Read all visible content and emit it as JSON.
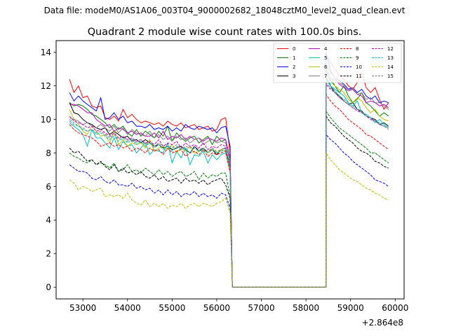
{
  "figure": {
    "header_text": "Data file: modeM0/AS1A06_003T04_9000002682_18048cztM0_level2_quad_clean.evt",
    "offset_label": "+2.864e8"
  },
  "chart_data": {
    "type": "line",
    "title": "Quadrant 2 module wise count rates with 100.0s bins.",
    "xlabel": "",
    "ylabel": "",
    "x_offset": 286400000,
    "xlim": [
      52400,
      60200
    ],
    "ylim": [
      -0.7,
      14.7
    ],
    "xticks": [
      53000,
      54000,
      55000,
      56000,
      57000,
      58000,
      59000,
      60000
    ],
    "yticks": [
      0,
      2,
      4,
      6,
      8,
      10,
      12,
      14
    ],
    "legend_location": "upper right",
    "legend_columns": 4,
    "seg1": {
      "start": 52700,
      "step": 100,
      "count": 37
    },
    "seg2": {
      "start": 58450,
      "step": 100,
      "count": 15
    },
    "zero_range": [
      56350,
      58450
    ],
    "series": [
      {
        "name": "0",
        "color": "#ff0000",
        "dashed": false,
        "values1": [
          12.4,
          11.6,
          12.0,
          11.3,
          11.4,
          10.8,
          10.7,
          10.8,
          10.1,
          10.0,
          10.2,
          9.9,
          10.6,
          10.1,
          10.3,
          10.0,
          9.8,
          9.9,
          9.8,
          9.7,
          9.8,
          9.6,
          9.9,
          9.7,
          9.6,
          9.8,
          9.5,
          9.6,
          9.7,
          9.4,
          9.5,
          9.6,
          9.3,
          9.4,
          10.0,
          10.1,
          8.0
        ],
        "values2": [
          13.8,
          13.4,
          13.0,
          12.6,
          12.4,
          12.0,
          11.8,
          12.2,
          12.8,
          11.9,
          11.6,
          11.9,
          11.2,
          10.6,
          11.0
        ]
      },
      {
        "name": "1",
        "color": "#008000",
        "dashed": false,
        "values1": [
          11.0,
          10.8,
          10.9,
          10.8,
          10.6,
          10.3,
          10.2,
          10.0,
          9.8,
          9.5,
          9.7,
          9.4,
          9.6,
          9.2,
          9.0,
          9.4,
          9.0,
          9.3,
          9.1,
          8.9,
          9.3,
          9.0,
          9.6,
          8.7,
          9.2,
          8.9,
          8.7,
          8.9,
          9.0,
          8.6,
          8.8,
          9.0,
          8.5,
          9.0,
          8.7,
          8.8,
          7.4
        ],
        "values2": [
          13.0,
          12.3,
          12.0,
          11.6,
          12.0,
          11.4,
          11.0,
          11.2,
          11.6,
          11.0,
          10.8,
          10.5,
          10.2,
          10.4,
          10.2
        ]
      },
      {
        "name": "2",
        "color": "#0000ff",
        "dashed": false,
        "values1": [
          11.6,
          11.1,
          11.4,
          11.1,
          10.9,
          10.7,
          10.5,
          11.3,
          10.0,
          10.1,
          10.4,
          10.0,
          10.2,
          9.8,
          9.9,
          9.6,
          9.6,
          9.5,
          9.7,
          9.4,
          9.5,
          9.4,
          9.6,
          9.3,
          9.5,
          9.3,
          9.7,
          9.5,
          9.4,
          9.6,
          9.5,
          9.4,
          9.5,
          9.2,
          9.5,
          9.6,
          8.4
        ],
        "values2": [
          14.0,
          12.9,
          12.5,
          12.3,
          12.1,
          11.8,
          11.9,
          11.6,
          11.8,
          11.4,
          11.2,
          11.4,
          11.0,
          11.1,
          11.0
        ]
      },
      {
        "name": "3",
        "color": "#000000",
        "dashed": false,
        "values1": [
          11.0,
          10.4,
          10.3,
          10.0,
          9.8,
          9.7,
          9.5,
          9.4,
          9.5,
          9.1,
          9.3,
          9.1,
          8.9,
          9.0,
          8.7,
          8.8,
          8.6,
          8.8,
          8.6,
          8.4,
          8.5,
          8.3,
          8.4,
          8.2,
          8.3,
          8.4,
          8.2,
          8.0,
          8.4,
          8.1,
          8.3,
          8.0,
          8.2,
          7.9,
          8.2,
          8.3,
          7.1
        ],
        "values2": [
          12.5,
          12.0,
          11.6,
          11.4,
          11.1,
          10.9,
          11.0,
          10.6,
          10.5,
          10.2,
          10.1,
          10.0,
          9.7,
          9.8,
          9.6
        ]
      },
      {
        "name": "4",
        "color": "#bf00bf",
        "dashed": false,
        "values1": [
          10.9,
          10.9,
          10.8,
          10.6,
          10.4,
          10.4,
          10.0,
          9.8,
          9.6,
          9.7,
          9.3,
          9.5,
          9.4,
          9.2,
          9.3,
          9.1,
          9.2,
          9.0,
          9.0,
          9.2,
          8.9,
          9.3,
          8.8,
          9.0,
          8.9,
          9.1,
          8.8,
          9.0,
          8.8,
          8.9,
          8.7,
          8.9,
          8.8,
          8.7,
          8.9,
          8.8,
          7.7
        ],
        "values2": [
          12.9,
          12.4,
          12.4,
          12.1,
          11.9,
          11.7,
          11.8,
          11.5,
          11.4,
          11.0,
          11.1,
          11.0,
          10.8,
          10.9,
          10.7
        ]
      },
      {
        "name": "5",
        "color": "#00bfbf",
        "dashed": false,
        "values1": [
          9.8,
          9.6,
          9.4,
          9.1,
          8.4,
          9.4,
          8.9,
          8.9,
          8.6,
          8.3,
          8.9,
          8.2,
          8.7,
          8.4,
          8.5,
          8.0,
          8.3,
          8.6,
          7.9,
          8.2,
          8.1,
          8.0,
          8.6,
          7.4,
          8.1,
          7.7,
          8.3,
          7.3,
          7.9,
          7.8,
          8.1,
          7.4,
          7.9,
          7.6,
          7.9,
          8.0,
          6.9
        ],
        "values2": [
          13.6,
          12.0,
          11.8,
          11.6,
          11.4,
          11.0,
          10.8,
          11.1,
          10.4,
          10.3,
          10.1,
          9.8,
          10.0,
          9.7,
          9.5
        ]
      },
      {
        "name": "6",
        "color": "#bfbf00",
        "dashed": false,
        "values1": [
          10.6,
          10.0,
          9.7,
          9.3,
          9.1,
          9.6,
          9.3,
          9.0,
          9.1,
          8.6,
          9.3,
          8.5,
          8.8,
          8.4,
          8.6,
          8.5,
          8.6,
          8.3,
          8.8,
          8.1,
          8.3,
          8.4,
          8.2,
          8.5,
          8.0,
          8.3,
          8.1,
          8.4,
          8.0,
          8.1,
          8.2,
          8.0,
          8.3,
          8.0,
          8.2,
          8.1,
          6.9
        ],
        "values2": [
          13.1,
          12.6,
          12.0,
          11.8,
          11.6,
          11.2,
          11.0,
          11.3,
          11.1,
          10.7,
          10.4,
          10.6,
          10.2,
          10.0,
          9.9
        ]
      },
      {
        "name": "7",
        "color": "#808080",
        "dashed": false,
        "values1": [
          10.1,
          10.0,
          9.9,
          9.7,
          9.8,
          9.6,
          9.5,
          9.7,
          9.5,
          9.3,
          9.6,
          9.2,
          9.5,
          9.1,
          9.4,
          9.2,
          9.1,
          9.0,
          9.3,
          8.9,
          9.1,
          8.8,
          9.0,
          8.7,
          9.0,
          8.8,
          8.9,
          8.6,
          8.8,
          8.9,
          8.5,
          8.7,
          8.8,
          8.6,
          8.7,
          8.6,
          7.6
        ],
        "values2": [
          13.3,
          12.8,
          12.5,
          12.2,
          12.0,
          11.7,
          11.9,
          11.5,
          11.6,
          11.2,
          11.3,
          11.0,
          11.0,
          10.8,
          10.6
        ]
      },
      {
        "name": "8",
        "color": "#ff0000",
        "dashed": true,
        "values1": [
          9.7,
          9.4,
          9.2,
          9.1,
          9.0,
          8.9,
          8.7,
          8.4,
          8.5,
          8.6,
          8.4,
          8.5,
          8.3,
          8.4,
          8.1,
          8.3,
          8.2,
          8.0,
          8.3,
          8.1,
          8.2,
          7.9,
          8.3,
          8.0,
          8.1,
          8.2,
          7.8,
          8.0,
          8.1,
          7.9,
          8.2,
          7.8,
          8.0,
          7.9,
          8.0,
          8.1,
          6.8
        ],
        "values2": [
          11.5,
          11.1,
          10.8,
          10.6,
          10.3,
          10.0,
          9.8,
          9.6,
          9.4,
          9.1,
          9.0,
          8.8,
          8.6,
          8.4,
          8.2
        ]
      },
      {
        "name": "9",
        "color": "#008000",
        "dashed": true,
        "values1": [
          8.0,
          7.8,
          7.7,
          7.5,
          7.4,
          7.6,
          7.3,
          7.4,
          7.3,
          7.1,
          7.4,
          6.9,
          7.0,
          7.3,
          6.9,
          7.0,
          6.8,
          7.1,
          6.9,
          6.7,
          7.0,
          6.7,
          6.9,
          6.6,
          6.8,
          6.9,
          6.6,
          6.7,
          6.9,
          6.4,
          6.8,
          6.5,
          6.7,
          6.6,
          6.8,
          6.8,
          5.4
        ],
        "values2": [
          10.5,
          10.1,
          9.8,
          9.5,
          9.3,
          9.1,
          8.9,
          8.7,
          8.5,
          8.3,
          8.0,
          8.0,
          7.8,
          7.6,
          7.4
        ]
      },
      {
        "name": "10",
        "color": "#0000ff",
        "dashed": true,
        "values1": [
          7.3,
          7.1,
          6.9,
          6.9,
          6.8,
          6.5,
          6.4,
          6.6,
          6.3,
          6.2,
          6.4,
          6.1,
          6.1,
          6.0,
          6.2,
          5.9,
          6.0,
          5.8,
          5.9,
          5.6,
          5.8,
          5.5,
          5.8,
          5.5,
          5.7,
          5.4,
          5.6,
          5.5,
          5.7,
          5.4,
          5.6,
          5.4,
          5.5,
          5.3,
          5.6,
          5.5,
          4.7
        ],
        "values2": [
          9.1,
          8.8,
          8.6,
          8.3,
          8.0,
          7.8,
          7.5,
          7.3,
          7.1,
          6.9,
          6.7,
          6.4,
          6.3,
          6.2,
          6.0
        ]
      },
      {
        "name": "11",
        "color": "#000000",
        "dashed": true,
        "values1": [
          8.3,
          8.0,
          8.1,
          7.8,
          7.5,
          7.6,
          7.3,
          7.5,
          7.2,
          7.0,
          7.3,
          6.9,
          7.1,
          6.8,
          6.9,
          6.7,
          6.9,
          6.6,
          6.5,
          6.7,
          6.4,
          6.6,
          6.3,
          6.4,
          6.5,
          6.2,
          6.5,
          6.3,
          6.4,
          6.2,
          6.4,
          6.1,
          6.3,
          6.4,
          6.5,
          6.1,
          5.3
        ],
        "values2": [
          10.2,
          9.8,
          9.6,
          9.3,
          9.0,
          8.8,
          8.6,
          8.3,
          8.1,
          8.0,
          7.8,
          7.5,
          7.4,
          7.2,
          7.1
        ]
      },
      {
        "name": "12",
        "color": "#bf00bf",
        "dashed": true,
        "values1": [
          10.2,
          9.9,
          9.8,
          9.7,
          9.5,
          9.6,
          9.3,
          9.4,
          9.2,
          9.0,
          9.2,
          8.9,
          9.0,
          8.8,
          8.9,
          8.7,
          8.8,
          8.6,
          8.7,
          8.5,
          8.8,
          8.4,
          8.6,
          8.5,
          8.7,
          8.3,
          8.6,
          8.4,
          8.5,
          8.3,
          8.6,
          8.2,
          8.4,
          8.3,
          8.5,
          8.4,
          7.2
        ],
        "values2": [
          12.1,
          11.8,
          11.6,
          11.3,
          11.1,
          10.9,
          10.7,
          10.5,
          10.4,
          10.2,
          10.0,
          9.9,
          9.7,
          9.6,
          9.5
        ]
      },
      {
        "name": "13",
        "color": "#00bfbf",
        "dashed": true,
        "values1": [
          10.0,
          9.8,
          9.6,
          9.4,
          9.3,
          9.4,
          9.1,
          9.2,
          9.0,
          8.8,
          9.0,
          8.7,
          8.9,
          8.6,
          8.8,
          8.5,
          8.7,
          8.4,
          8.6,
          8.3,
          8.5,
          8.2,
          8.4,
          8.1,
          8.4,
          8.2,
          8.3,
          8.0,
          8.3,
          8.1,
          8.2,
          8.0,
          8.2,
          8.0,
          8.1,
          8.2,
          7.0
        ],
        "values2": [
          12.4,
          12.0,
          11.7,
          11.4,
          11.2,
          11.0,
          10.8,
          10.6,
          10.4,
          10.2,
          10.1,
          9.9,
          9.8,
          9.6,
          9.5
        ]
      },
      {
        "name": "14",
        "color": "#bfbf00",
        "dashed": true,
        "values1": [
          6.4,
          6.2,
          5.8,
          6.0,
          5.9,
          5.7,
          5.8,
          5.9,
          5.4,
          5.5,
          5.4,
          5.5,
          5.3,
          5.6,
          5.2,
          5.0,
          4.9,
          5.2,
          4.8,
          5.0,
          4.8,
          5.0,
          4.7,
          4.9,
          4.8,
          5.0,
          4.7,
          4.9,
          5.0,
          4.8,
          5.0,
          4.9,
          4.8,
          5.0,
          5.1,
          5.3,
          4.4
        ],
        "values2": [
          8.0,
          7.6,
          7.3,
          7.0,
          6.8,
          6.6,
          6.4,
          6.3,
          6.1,
          5.9,
          5.8,
          5.6,
          5.5,
          5.3,
          5.2
        ]
      },
      {
        "name": "15",
        "color": "#808080",
        "dashed": true,
        "values1": [
          9.9,
          9.7,
          9.6,
          9.5,
          9.3,
          9.4,
          9.2,
          9.3,
          9.1,
          8.9,
          9.1,
          8.8,
          9.0,
          8.7,
          8.9,
          8.6,
          8.8,
          8.5,
          8.7,
          8.4,
          8.6,
          8.4,
          8.5,
          8.3,
          8.5,
          8.2,
          8.4,
          8.3,
          8.4,
          8.2,
          8.3,
          8.1,
          8.3,
          8.1,
          8.2,
          8.3,
          7.1
        ],
        "values2": [
          12.2,
          11.9,
          11.6,
          11.3,
          11.1,
          10.9,
          10.7,
          10.6,
          10.4,
          10.2,
          10.1,
          9.9,
          9.7,
          9.6,
          9.4
        ]
      }
    ]
  }
}
